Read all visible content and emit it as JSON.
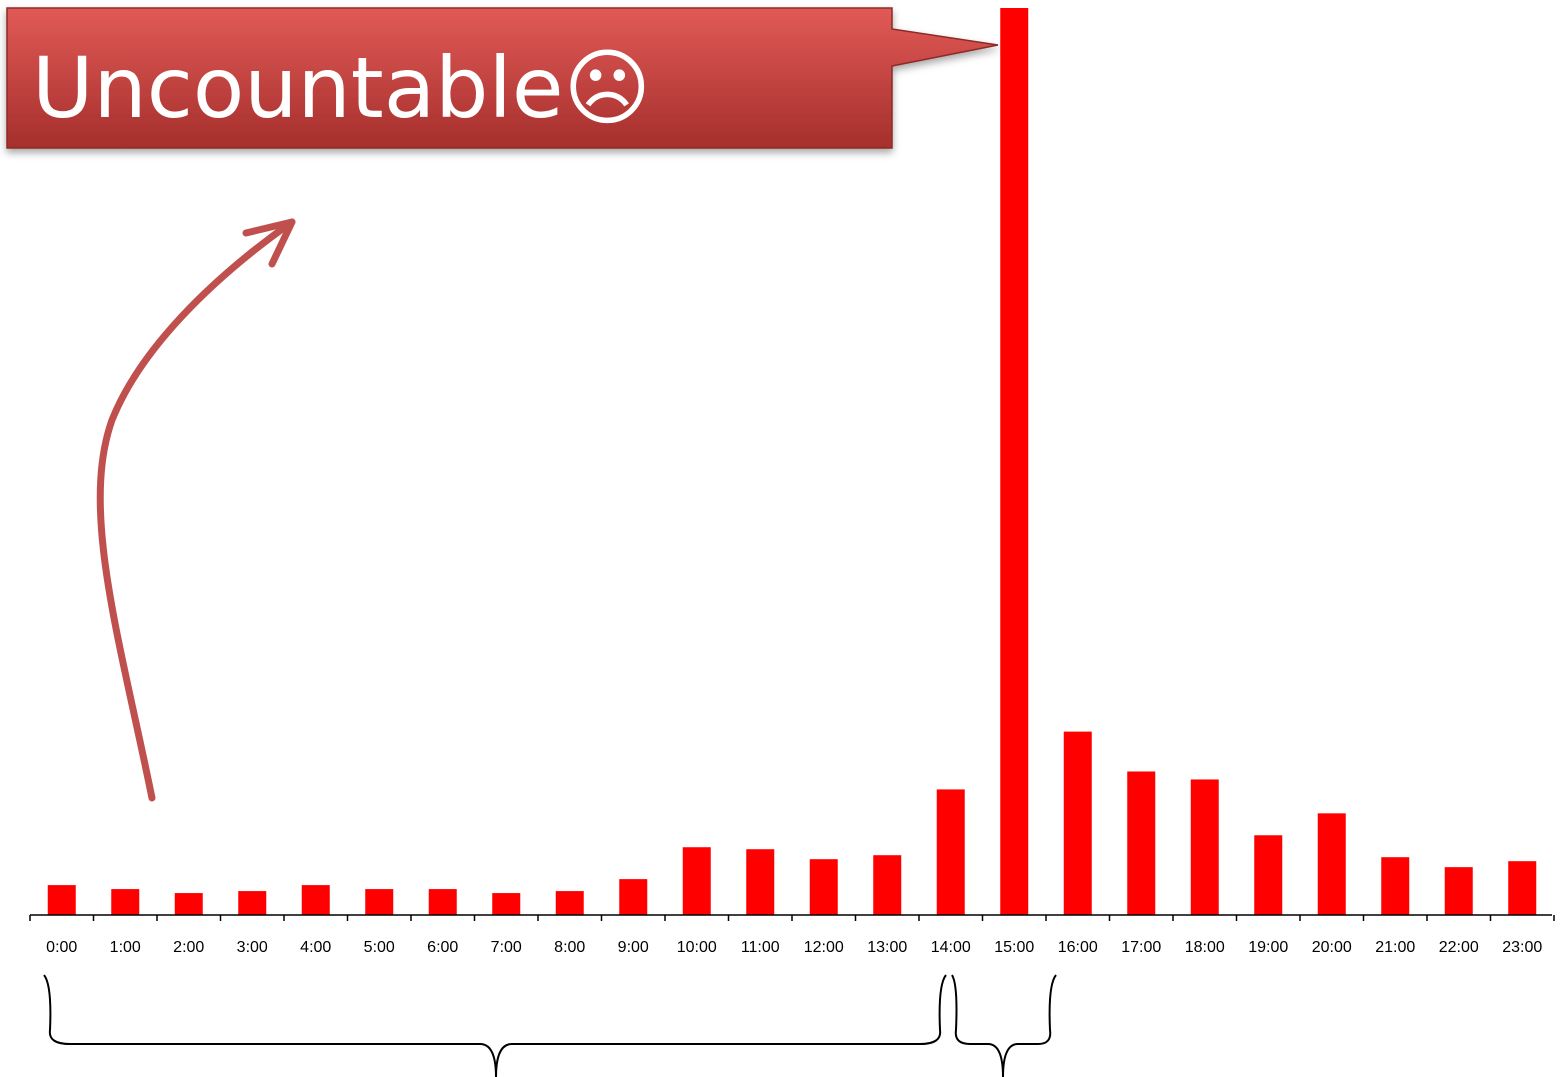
{
  "chart_data": {
    "type": "bar",
    "categories": [
      "0:00",
      "1:00",
      "2:00",
      "3:00",
      "4:00",
      "5:00",
      "6:00",
      "7:00",
      "8:00",
      "9:00",
      "10:00",
      "11:00",
      "12:00",
      "13:00",
      "14:00",
      "15:00",
      "16:00",
      "17:00",
      "18:00",
      "19:00",
      "20:00",
      "21:00",
      "22:00",
      "23:00"
    ],
    "values": [
      30,
      26,
      22,
      24,
      30,
      26,
      26,
      22,
      24,
      36,
      68,
      66,
      56,
      60,
      126,
      910,
      184,
      144,
      136,
      80,
      102,
      58,
      48,
      54
    ],
    "ylim": [
      0,
      910
    ],
    "grid": false,
    "legend": "none",
    "bar_color": "#ff0000"
  },
  "callout": {
    "text": "Uncountable☹",
    "color": "#c0504d",
    "arrow_color": "#c0504d"
  }
}
